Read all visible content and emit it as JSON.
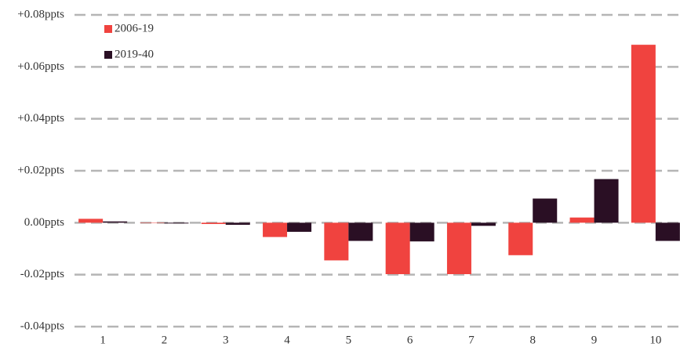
{
  "chart_data": {
    "type": "bar",
    "categories": [
      "1",
      "2",
      "3",
      "4",
      "5",
      "6",
      "7",
      "8",
      "9",
      "10"
    ],
    "series": [
      {
        "name": "2006-19",
        "color": "#f0433f",
        "values": [
          0.0015,
          0,
          -0.0005,
          -0.0055,
          -0.0145,
          -0.0198,
          -0.0198,
          -0.0125,
          0.002,
          0.0685
        ]
      },
      {
        "name": "2019-40",
        "color": "#2a0f24",
        "values": [
          0.0005,
          -0.0003,
          -0.0008,
          -0.0035,
          -0.007,
          -0.0072,
          -0.0012,
          0.0093,
          0.0168,
          -0.007
        ]
      }
    ],
    "ylim": [
      -0.04,
      0.08
    ],
    "yticks": [
      {
        "value": -0.04,
        "label": "-0.04ppts"
      },
      {
        "value": -0.02,
        "label": "-0.02ppts"
      },
      {
        "value": 0,
        "label": "0.00ppts"
      },
      {
        "value": 0.02,
        "label": "+0.02ppts"
      },
      {
        "value": 0.04,
        "label": "+0.04ppts"
      },
      {
        "value": 0.06,
        "label": "+0.06ppts"
      },
      {
        "value": 0.08,
        "label": "+0.08ppts"
      }
    ],
    "grid": true,
    "legend": "top-left"
  }
}
